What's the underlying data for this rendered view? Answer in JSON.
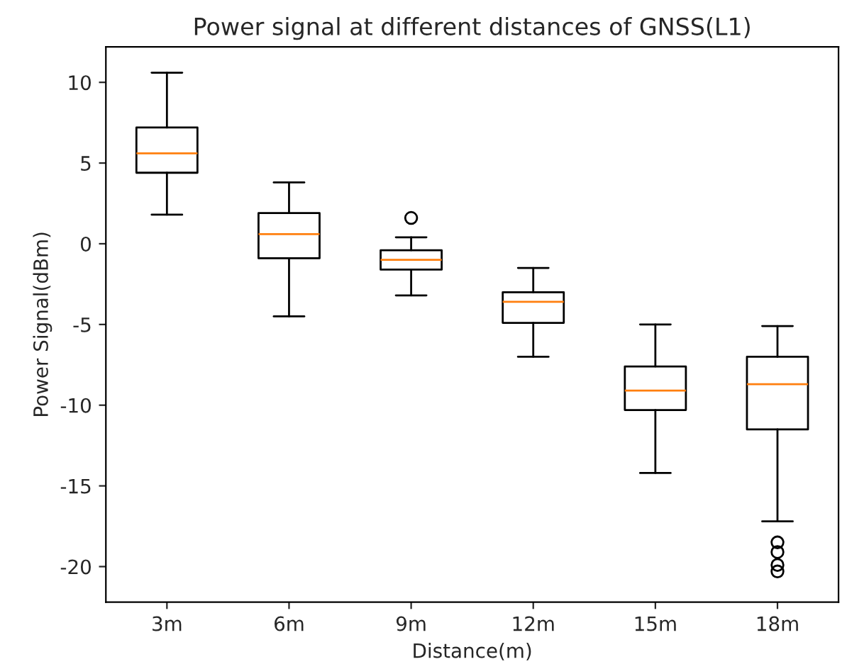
{
  "chart_data": {
    "type": "box",
    "title": "Power signal at different distances of GNSS(L1)",
    "xlabel": "Distance(m)",
    "ylabel": "Power Signal(dBm)",
    "categories": [
      "3m",
      "6m",
      "9m",
      "12m",
      "15m",
      "18m"
    ],
    "boxes": [
      {
        "low": 1.8,
        "q1": 4.4,
        "median": 5.6,
        "q3": 7.2,
        "high": 10.6
      },
      {
        "low": -4.5,
        "q1": -0.9,
        "median": 0.6,
        "q3": 1.9,
        "high": 3.8
      },
      {
        "low": -3.2,
        "q1": -1.6,
        "median": -1.0,
        "q3": -0.4,
        "high": 0.4,
        "outliers": [
          1.6
        ]
      },
      {
        "low": -7.0,
        "q1": -4.9,
        "median": -3.6,
        "q3": -3.0,
        "high": -1.5
      },
      {
        "low": -14.2,
        "q1": -10.3,
        "median": -9.1,
        "q3": -7.6,
        "high": -5.0
      },
      {
        "low": -17.2,
        "q1": -11.5,
        "median": -8.7,
        "q3": -7.0,
        "high": -5.1,
        "outliers": [
          -18.5,
          -19.1,
          -19.9,
          -20.3
        ]
      }
    ],
    "ylim": [
      -22.2,
      12.2
    ],
    "yticks": [
      -20,
      -15,
      -10,
      -5,
      0,
      5,
      10
    ],
    "grid": false
  }
}
